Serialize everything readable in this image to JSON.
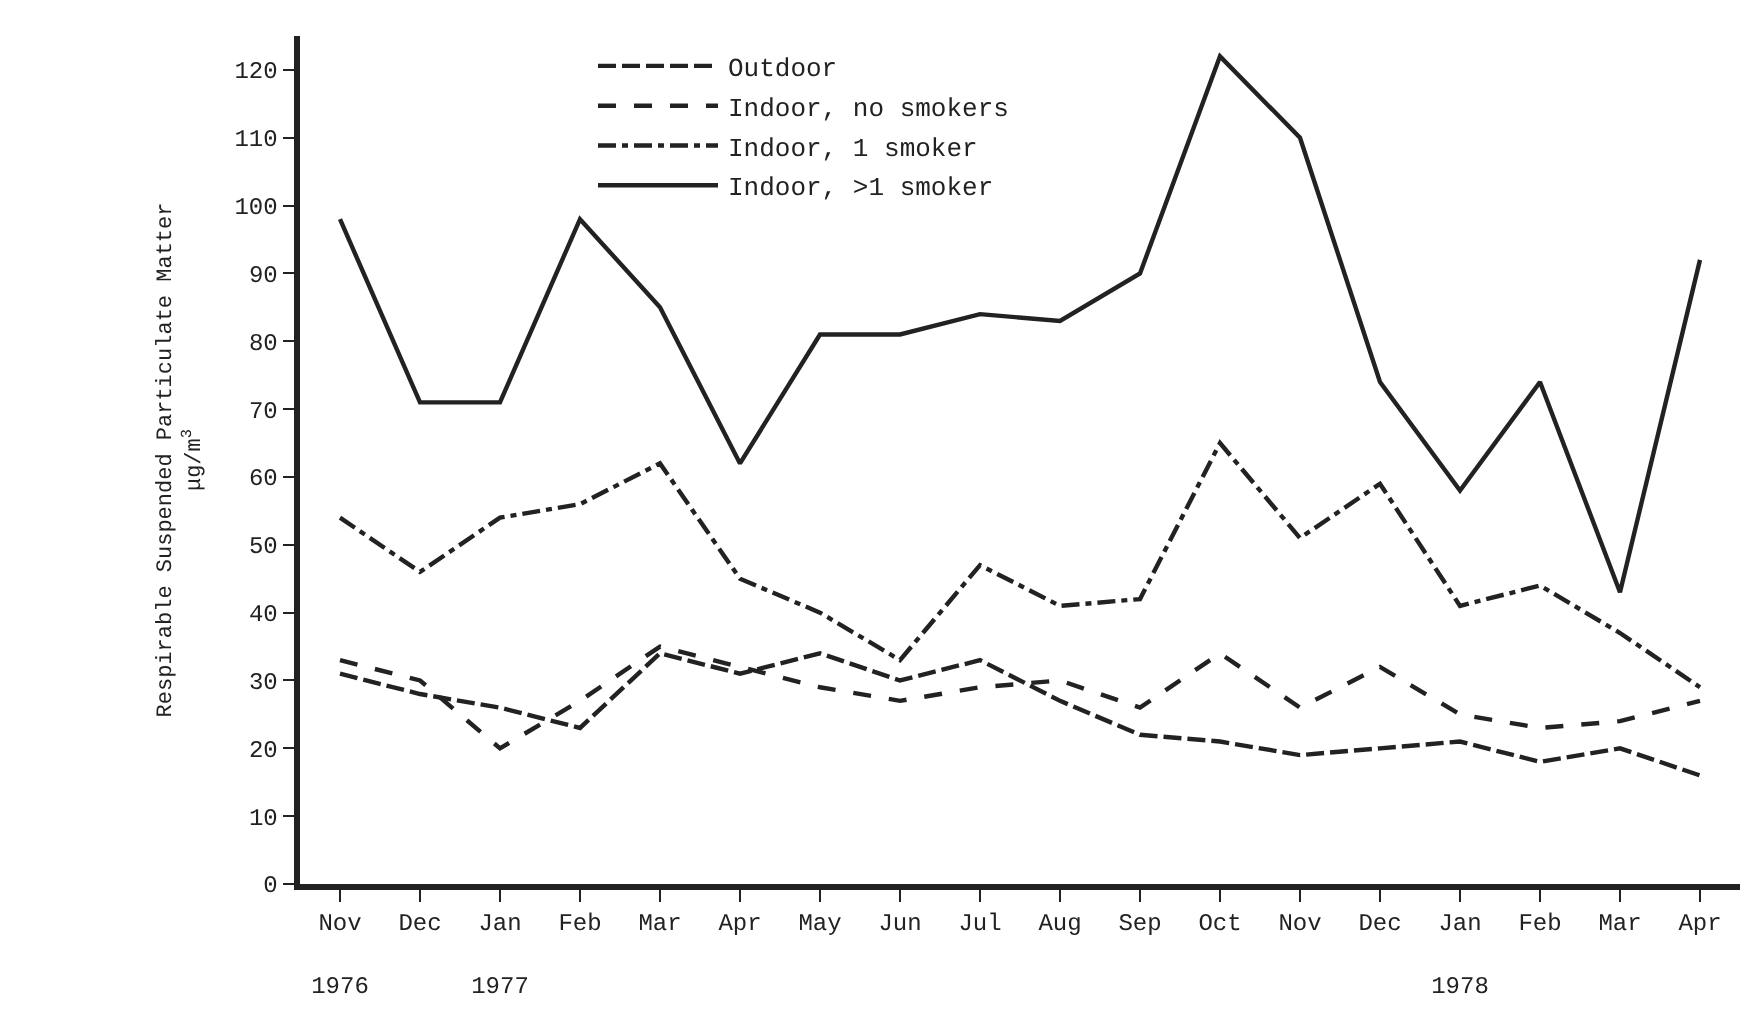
{
  "chart_data": {
    "type": "line",
    "ylabel": "Respirable Suspended Particulate Matter\nμg/m$^{3}$",
    "categories": [
      "Nov\n1976",
      "Dec",
      "Jan\n1977",
      "Feb",
      "Mar",
      "Apr",
      "May",
      "Jun",
      "Jul",
      "Aug",
      "Sep",
      "Oct",
      "Nov",
      "Dec",
      "Jan\n1978",
      "Feb",
      "Mar",
      "Apr"
    ],
    "series": [
      {
        "name": "Outdoor",
        "color": "#222222",
        "line_style": "long dashed",
        "values": [
          31,
          28,
          26,
          23,
          34,
          31,
          34,
          30,
          33,
          27,
          22,
          21,
          19,
          20,
          21,
          18,
          20,
          16
        ]
      },
      {
        "name": "Indoor, no smokers",
        "color": "#222222",
        "line_style": "dashed",
        "values": [
          33,
          30,
          20,
          27,
          35,
          32,
          29,
          27,
          29,
          30,
          26,
          34,
          26,
          32,
          25,
          23,
          24,
          27
        ]
      },
      {
        "name": "Indoor, 1 smoker",
        "color": "#222222",
        "line_style": "dashdot",
        "values": [
          54,
          46,
          54,
          56,
          62,
          45,
          40,
          33,
          47,
          41,
          42,
          65,
          51,
          59,
          41,
          44,
          37,
          29
        ]
      },
      {
        "name": "Indoor, >1 smoker",
        "color": "#222222",
        "line_style": "solid",
        "values": [
          98,
          71,
          71,
          98,
          85,
          62,
          81,
          81,
          84,
          83,
          90,
          122,
          110,
          74,
          58,
          74,
          43,
          92
        ]
      }
    ],
    "ylim": [
      0,
      125
    ],
    "yticks": [
      0,
      10,
      20,
      30,
      40,
      50,
      60,
      70,
      80,
      90,
      100,
      110,
      120
    ],
    "legend": "top left",
    "marker": "none"
  }
}
